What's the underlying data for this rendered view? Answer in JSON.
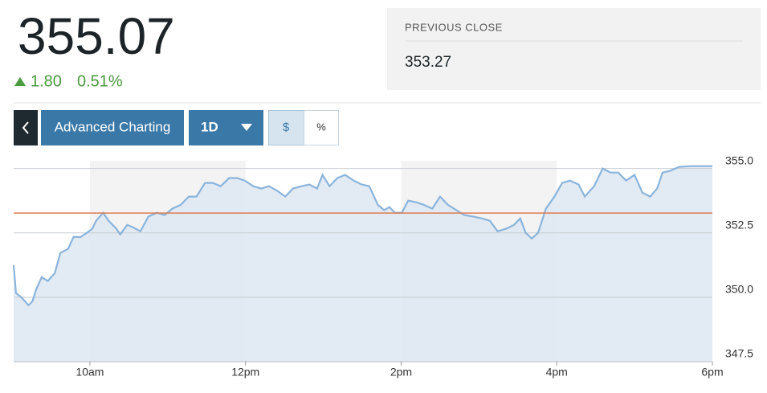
{
  "header": {
    "price": "355.07",
    "change": "1.80",
    "change_percent": "0.51%"
  },
  "toolbar": {
    "advanced": "Advanced Charting",
    "range": "1D",
    "dollar": "$",
    "percent": "%"
  },
  "chart_data": {
    "type": "line",
    "previous_close_label": "PREVIOUS CLOSE",
    "previous_close": 353.27,
    "previous_close_color": "#e07b4f",
    "x": [
      9.02,
      9.05,
      9.12,
      9.21,
      9.26,
      9.31,
      9.38,
      9.46,
      9.55,
      9.62,
      9.72,
      9.79,
      9.88,
      9.96,
      10.03,
      10.08,
      10.17,
      10.24,
      10.34,
      10.39,
      10.48,
      10.55,
      10.65,
      10.75,
      10.86,
      10.96,
      11.06,
      11.17,
      11.27,
      11.37,
      11.48,
      11.58,
      11.68,
      11.79,
      11.89,
      11.99,
      12.1,
      12.2,
      12.3,
      12.41,
      12.51,
      12.61,
      12.72,
      12.82,
      12.92,
      12.99,
      13.08,
      13.18,
      13.28,
      13.39,
      13.49,
      13.59,
      13.7,
      13.78,
      13.85,
      13.92,
      14.01,
      14.09,
      14.19,
      14.29,
      14.4,
      14.5,
      14.6,
      14.71,
      14.81,
      14.93,
      15.04,
      15.14,
      15.24,
      15.35,
      15.45,
      15.53,
      15.6,
      15.68,
      15.76,
      15.86,
      15.97,
      16.07,
      16.17,
      16.28,
      16.36,
      16.48,
      16.59,
      16.69,
      16.79,
      16.89,
      17.0,
      17.1,
      17.2,
      17.29,
      17.36,
      17.46,
      17.57,
      17.72,
      18.0
    ],
    "series": [
      {
        "color": "#8ab4dc",
        "fill": "#dde7f1",
        "values": [
          351.25,
          350.16,
          350.0,
          349.69,
          349.84,
          350.31,
          350.78,
          350.63,
          350.94,
          351.72,
          351.88,
          352.34,
          352.34,
          352.5,
          352.66,
          352.97,
          353.28,
          352.97,
          352.66,
          352.44,
          352.81,
          352.72,
          352.56,
          353.13,
          353.28,
          353.19,
          353.44,
          353.59,
          353.91,
          353.91,
          354.44,
          354.44,
          354.31,
          354.63,
          354.63,
          354.53,
          354.31,
          354.22,
          354.31,
          354.13,
          353.91,
          354.22,
          354.31,
          354.38,
          354.22,
          354.75,
          354.31,
          354.63,
          354.75,
          354.53,
          354.38,
          354.31,
          353.59,
          353.38,
          353.5,
          353.28,
          353.28,
          353.75,
          353.69,
          353.59,
          353.44,
          353.91,
          353.59,
          353.38,
          353.19,
          353.13,
          353.06,
          352.97,
          352.56,
          352.66,
          352.81,
          353.06,
          352.5,
          352.28,
          352.5,
          353.44,
          353.91,
          354.44,
          354.53,
          354.38,
          353.91,
          354.31,
          355.0,
          354.84,
          354.84,
          354.53,
          354.75,
          354.06,
          353.91,
          354.22,
          354.84,
          354.91,
          355.06,
          355.09,
          355.09
        ]
      }
    ],
    "xlim": [
      9.02,
      18
    ],
    "xticks": [
      {
        "value": 10,
        "label": "10am"
      },
      {
        "value": 12,
        "label": "12pm"
      },
      {
        "value": 14,
        "label": "2pm"
      },
      {
        "value": 16,
        "label": "4pm"
      },
      {
        "value": 18,
        "label": "6pm"
      }
    ],
    "ylim": [
      347.5,
      355.3
    ],
    "yticks": [
      347.5,
      {
        "value": 350,
        "label": "350.0"
      },
      352.5,
      {
        "value": 355,
        "label": "355.0"
      }
    ],
    "grid": true
  }
}
